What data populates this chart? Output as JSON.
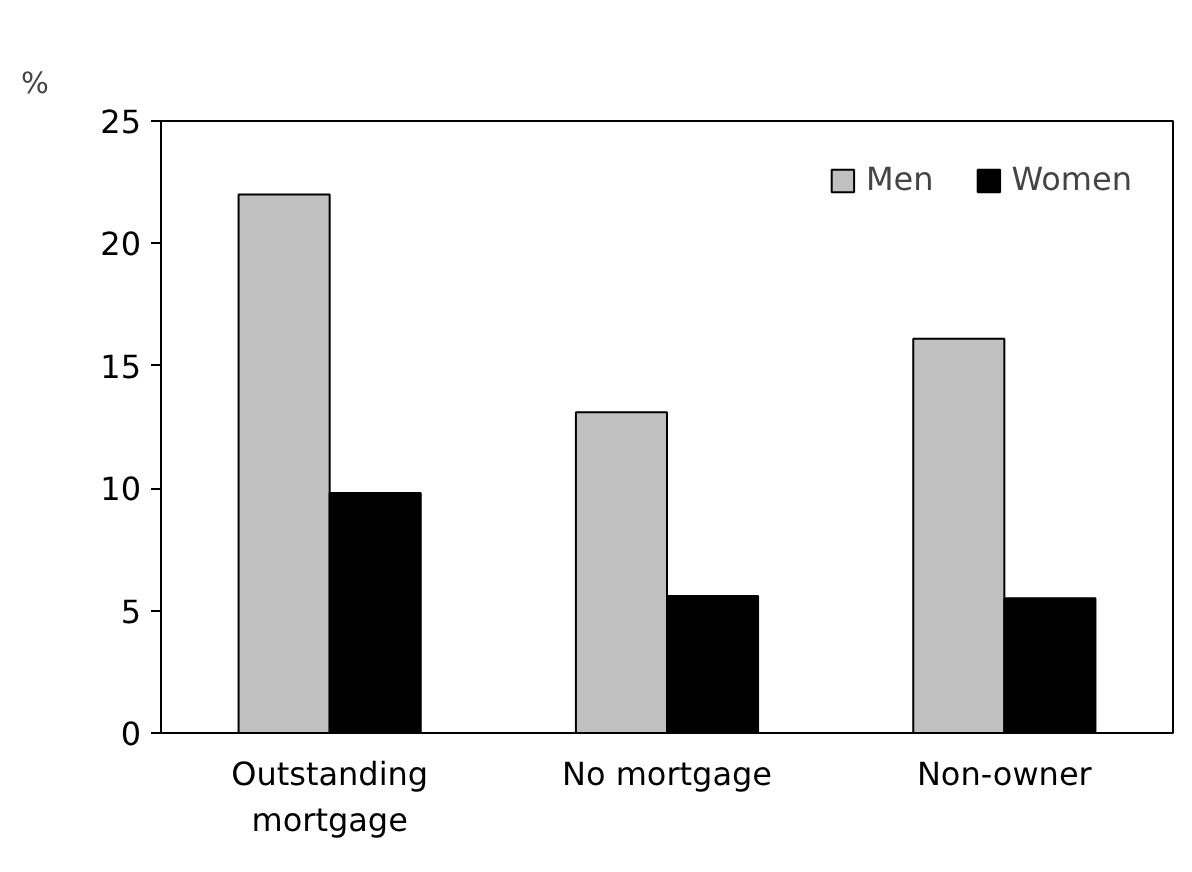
{
  "chart_data": {
    "type": "bar",
    "ylabel": "%",
    "categories": [
      "Outstanding mortgage",
      "No mortgage",
      "Non-owner"
    ],
    "series": [
      {
        "name": "Men",
        "color": "#c0c0c0",
        "values": [
          22,
          13.1,
          16.1
        ]
      },
      {
        "name": "Women",
        "color": "#000000",
        "values": [
          9.8,
          5.6,
          5.5
        ]
      }
    ],
    "ylim": [
      0,
      25
    ],
    "yticks": [
      0,
      5,
      10,
      15,
      20,
      25
    ],
    "grid": false,
    "legend": "top right"
  }
}
